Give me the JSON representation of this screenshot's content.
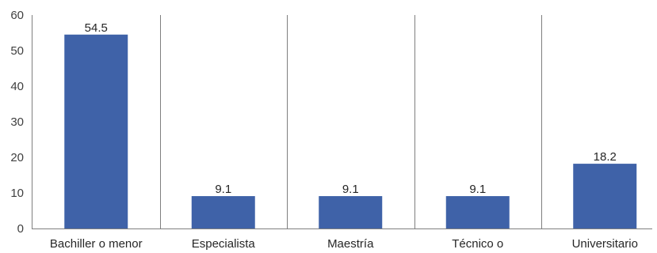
{
  "chart_data": {
    "type": "bar",
    "categories": [
      "Bachiller o menor",
      "Especialista",
      "Maestría",
      "Técnico o",
      "Universitario"
    ],
    "values": [
      54.5,
      9.1,
      9.1,
      9.1,
      18.2
    ],
    "value_labels": [
      "54.5",
      "9.1",
      "9.1",
      "9.1",
      "18.2"
    ],
    "title": "",
    "xlabel": "",
    "ylabel": "",
    "ylim": [
      0,
      60
    ],
    "yticks": [
      0,
      10,
      20,
      30,
      40,
      50,
      60
    ],
    "grid": "vertical separators between categories",
    "legend": "none",
    "bar_color": "#3f62a8",
    "separator_color": "#7f7f7f"
  }
}
